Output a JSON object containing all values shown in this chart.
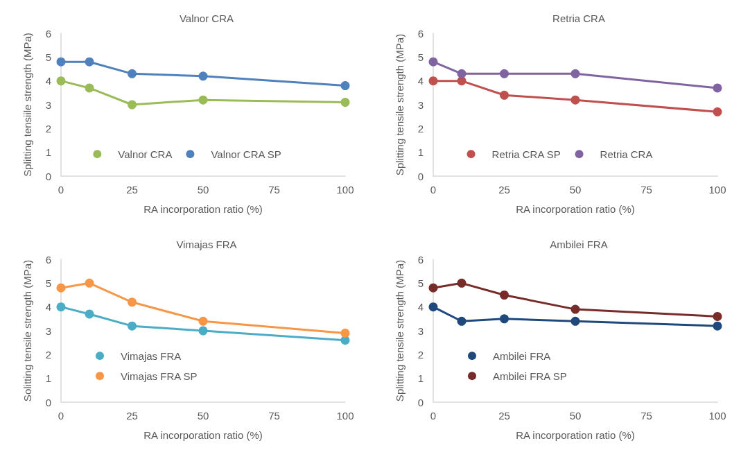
{
  "chart_data": [
    {
      "type": "line",
      "title": "Valnor CRA",
      "xlabel": "RA incorporation ratio (%)",
      "ylabel": "Splitting tensiile strength (MPa)",
      "x": [
        0,
        10,
        25,
        50,
        100
      ],
      "xlim": [
        0,
        100
      ],
      "xticks": [
        0,
        25,
        50,
        75,
        100
      ],
      "ylim": [
        0,
        6
      ],
      "yticks": [
        0,
        1,
        2,
        3,
        4,
        5,
        6
      ],
      "grid": false,
      "legend": "bottom",
      "marker": "circle",
      "line_style": "solid",
      "series": [
        {
          "name": "Valnor CRA",
          "color": "#9bbb59",
          "values": [
            4.0,
            3.7,
            3.0,
            3.2,
            3.1
          ]
        },
        {
          "name": "Valnor CRA SP",
          "color": "#4f81bd",
          "values": [
            4.8,
            4.8,
            4.3,
            4.2,
            3.8
          ]
        }
      ]
    },
    {
      "type": "line",
      "title": "Retria CRA",
      "xlabel": "RA incorporation ratio (%)",
      "ylabel": "Splitting tensile strength (MPa)",
      "x": [
        0,
        10,
        25,
        50,
        100
      ],
      "xlim": [
        0,
        100
      ],
      "xticks": [
        0,
        25,
        50,
        75,
        100
      ],
      "ylim": [
        0,
        6
      ],
      "yticks": [
        0,
        1,
        2,
        3,
        4,
        5,
        6
      ],
      "grid": false,
      "legend": "bottom",
      "marker": "circle",
      "line_style": "solid",
      "series": [
        {
          "name": "Retria CRA SP",
          "color": "#c0504d",
          "values": [
            4.0,
            4.0,
            3.4,
            3.2,
            2.7
          ]
        },
        {
          "name": "Retria CRA",
          "color": "#8064a2",
          "values": [
            4.8,
            4.3,
            4.3,
            4.3,
            3.7
          ]
        }
      ]
    },
    {
      "type": "line",
      "title": "Vimajas FRA",
      "xlabel": "RA incorporation ratio (%)",
      "ylabel": "Solitting tensile strength (MPa)",
      "x": [
        0,
        10,
        25,
        50,
        100
      ],
      "xlim": [
        0,
        100
      ],
      "xticks": [
        0,
        25,
        50,
        75,
        100
      ],
      "ylim": [
        0,
        6
      ],
      "yticks": [
        0,
        1,
        2,
        3,
        4,
        5,
        6
      ],
      "grid": false,
      "legend": "bottom left",
      "marker": "circle",
      "line_style": "solid",
      "series": [
        {
          "name": "Vimajas FRA",
          "color": "#4bacc6",
          "values": [
            4.0,
            3.7,
            3.2,
            3.0,
            2.6
          ]
        },
        {
          "name": "Vimajas FRA SP",
          "color": "#f79646",
          "values": [
            4.8,
            5.0,
            4.2,
            3.4,
            2.9
          ]
        }
      ]
    },
    {
      "type": "line",
      "title": "Ambilei FRA",
      "xlabel": "RA incorporation ratio (%)",
      "ylabel": "Splitting tensile strength (MPa)",
      "x": [
        0,
        10,
        25,
        50,
        100
      ],
      "xlim": [
        0,
        100
      ],
      "xticks": [
        0,
        25,
        50,
        75,
        100
      ],
      "ylim": [
        0,
        6
      ],
      "yticks": [
        0,
        1,
        2,
        3,
        4,
        5,
        6
      ],
      "grid": false,
      "legend": "bottom left",
      "marker": "circle",
      "line_style": "solid",
      "series": [
        {
          "name": "Ambilei FRA",
          "color": "#1f497d",
          "values": [
            4.0,
            3.4,
            3.5,
            3.4,
            3.2
          ]
        },
        {
          "name": "Ambilei FRA SP",
          "color": "#772c2a",
          "values": [
            4.8,
            5.0,
            4.5,
            3.9,
            3.6
          ]
        }
      ]
    }
  ]
}
